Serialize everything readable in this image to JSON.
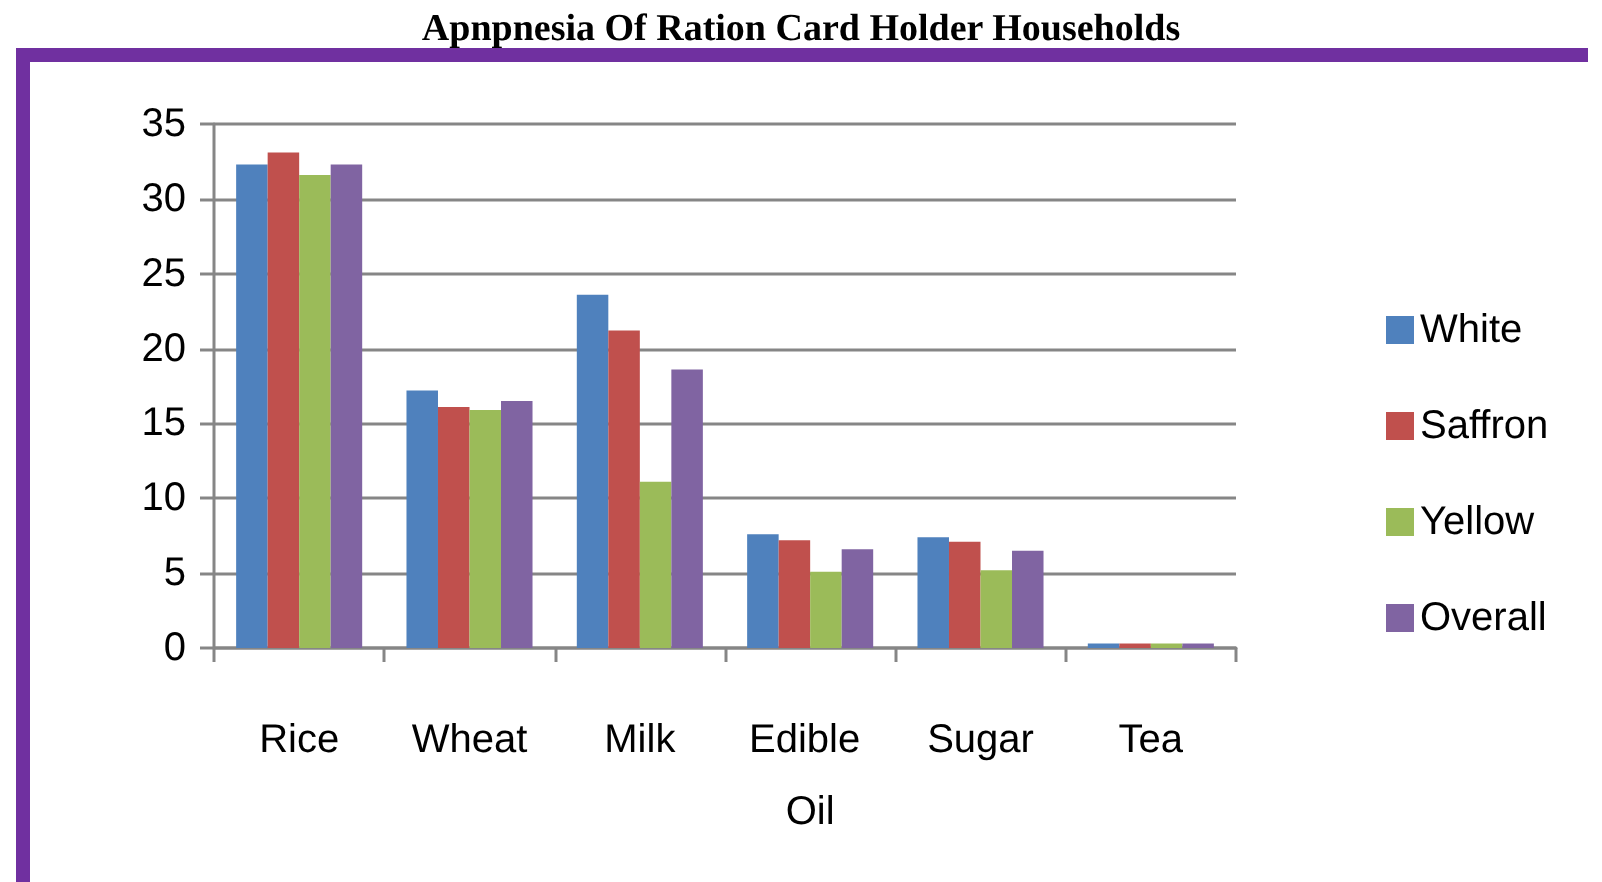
{
  "chart_data": {
    "type": "bar",
    "title": "Apnpnesia Of Ration Card Holder Households",
    "categories": [
      "Rice",
      "Wheat",
      "Milk",
      "Edible Oil",
      "Sugar",
      "Tea"
    ],
    "series": [
      {
        "name": "White",
        "color": "#4f81bd",
        "values": [
          32.3,
          17.2,
          23.6,
          7.6,
          7.4,
          0.3
        ]
      },
      {
        "name": "Saffron",
        "color": "#c0504d",
        "values": [
          33.1,
          16.1,
          21.2,
          7.2,
          7.1,
          0.3
        ]
      },
      {
        "name": "Yellow",
        "color": "#9bbb59",
        "values": [
          31.6,
          15.9,
          11.1,
          5.1,
          5.2,
          0.3
        ]
      },
      {
        "name": "Overall",
        "color": "#8064a2",
        "values": [
          32.3,
          16.5,
          18.6,
          6.6,
          6.5,
          0.3
        ]
      }
    ],
    "ylim": [
      0,
      35
    ],
    "yticks": [
      0,
      5,
      10,
      15,
      20,
      25,
      30,
      35
    ],
    "grid": "y",
    "legend": "right"
  }
}
